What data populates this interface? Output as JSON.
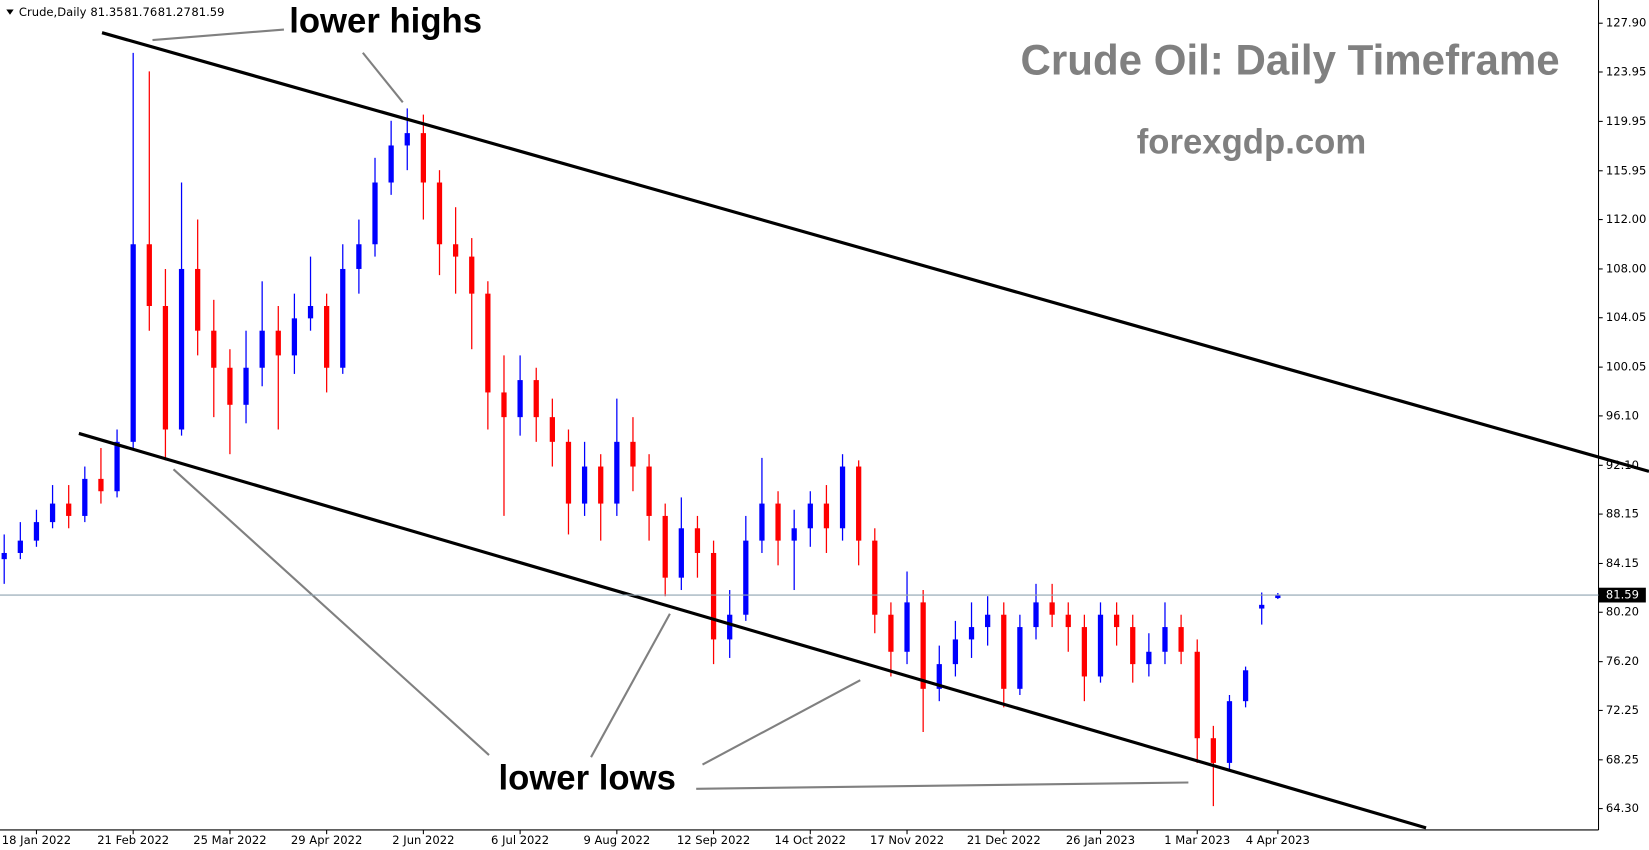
{
  "chart_data": {
    "type": "candlestick",
    "symbol": "Crude,Daily",
    "title": "Crude Oil: Daily Timeframe",
    "subtitle": "forexgdp.com",
    "annotations": [
      "lower highs",
      "lower lows"
    ],
    "up_color": "#0000ff",
    "down_color": "#ff0000",
    "categories": [
      null,
      null,
      "18 Jan 2022",
      null,
      null,
      null,
      null,
      null,
      "21 Feb 2022",
      null,
      null,
      null,
      null,
      null,
      "25 Mar 2022",
      null,
      null,
      null,
      null,
      null,
      "29 Apr 2022",
      null,
      null,
      null,
      null,
      null,
      "2 Jun 2022",
      null,
      null,
      null,
      null,
      null,
      "6 Jul 2022",
      null,
      null,
      null,
      null,
      null,
      "9 Aug 2022",
      null,
      null,
      null,
      null,
      null,
      "12 Sep 2022",
      null,
      null,
      null,
      null,
      null,
      "14 Oct 2022",
      null,
      null,
      null,
      null,
      null,
      "17 Nov 2022",
      null,
      null,
      null,
      null,
      null,
      "21 Dec 2022",
      null,
      null,
      null,
      null,
      null,
      "26 Jan 2023",
      null,
      null,
      null,
      null,
      null,
      "1 Mar 2023",
      null,
      null,
      null,
      null,
      "4 Apr 2023"
    ],
    "open": [
      84.5,
      85,
      86,
      87.5,
      89,
      88,
      91,
      90,
      94,
      110,
      105,
      95,
      108,
      103,
      100,
      97,
      100,
      103,
      101,
      104,
      105,
      100,
      108,
      110,
      115,
      118,
      119,
      115,
      110,
      109,
      106,
      98,
      96,
      99,
      96,
      94,
      89,
      92,
      89,
      94,
      92,
      88,
      83,
      87,
      85,
      78,
      80,
      86,
      89,
      86,
      87,
      89,
      87,
      92,
      86,
      80,
      77,
      81,
      74,
      76,
      78,
      79,
      80,
      74,
      79,
      81,
      80,
      79,
      75,
      80,
      79,
      76,
      77,
      79,
      77,
      70,
      68,
      73,
      80.5,
      81.35
    ],
    "high": [
      86.5,
      87.5,
      88.5,
      90.5,
      90.5,
      92,
      93.5,
      95,
      125.5,
      124,
      108,
      115,
      112,
      105.5,
      101.5,
      103,
      107,
      105,
      106,
      109,
      106,
      110,
      112,
      117,
      120,
      121,
      120.5,
      116,
      113,
      110.5,
      107,
      101,
      101,
      100,
      97.5,
      95,
      94,
      93,
      97.5,
      96,
      93,
      89,
      89.5,
      88,
      86,
      82,
      88,
      92.7,
      90,
      88.5,
      90,
      90.5,
      93,
      92.5,
      87,
      81,
      83.5,
      82,
      77.5,
      79.5,
      81,
      81.5,
      81,
      80,
      82.5,
      82.5,
      81,
      80,
      81,
      81,
      80,
      78.5,
      81,
      80,
      78,
      71,
      73.5,
      75.8,
      81.8,
      81.76
    ],
    "low": [
      82.5,
      84.5,
      85.5,
      87,
      87,
      87.5,
      89,
      89.5,
      93.5,
      103,
      92.5,
      94.5,
      101,
      96,
      93,
      95.5,
      98.5,
      95,
      99.5,
      103,
      98,
      99.5,
      106,
      109,
      114,
      116,
      112,
      107.5,
      106,
      101.5,
      95,
      88,
      94.5,
      94,
      92,
      86.5,
      88,
      86,
      88,
      90,
      86,
      81.5,
      82,
      83,
      76,
      76.5,
      79.5,
      85,
      84,
      82,
      85.5,
      85,
      86,
      84,
      78.5,
      75,
      76,
      70.5,
      73,
      75,
      76.5,
      77.5,
      72.5,
      73.5,
      78,
      79,
      77,
      73,
      74.5,
      77.5,
      74.5,
      75,
      76,
      76,
      68,
      64.5,
      67.5,
      72.5,
      79.2,
      81.27
    ],
    "close": [
      85,
      86,
      87.5,
      89,
      88,
      91,
      90,
      94,
      110,
      105,
      95,
      108,
      103,
      100,
      97,
      100,
      103,
      101,
      104,
      105,
      100,
      108,
      110,
      115,
      118,
      119,
      115,
      110,
      109,
      106,
      98,
      96,
      99,
      96,
      94,
      89,
      92,
      89,
      94,
      92,
      88,
      83,
      87,
      85,
      78,
      80,
      86,
      89,
      86,
      87,
      89,
      87,
      92,
      86,
      80,
      77,
      81,
      74,
      76,
      78,
      79,
      80,
      74,
      79,
      81,
      80,
      79,
      75,
      80,
      79,
      76,
      77,
      79,
      77,
      70,
      68,
      73,
      75.5,
      80.8,
      81.59
    ],
    "ylim": [
      62.57,
      129.78
    ],
    "yticks": [
      {
        "value": 127.9,
        "label": "127.90"
      },
      123.95,
      {
        "value": 119.95,
        "label": "119.95"
      },
      115.95,
      {
        "value": 112,
        "label": "112.00"
      },
      {
        "value": 108,
        "label": "108.00"
      },
      104.05,
      100.05,
      {
        "value": 96.1,
        "label": "96.10"
      },
      {
        "value": 92.1,
        "label": "92.10"
      },
      88.15,
      84.15,
      {
        "value": 80.2,
        "label": "80.20"
      },
      {
        "value": 76.2,
        "label": "76.20"
      },
      {
        "value": 72.25,
        "label": "72.25"
      },
      {
        "value": 68.25,
        "label": "68.25"
      },
      {
        "value": 64.3,
        "label": "64.30"
      }
    ]
  }
}
